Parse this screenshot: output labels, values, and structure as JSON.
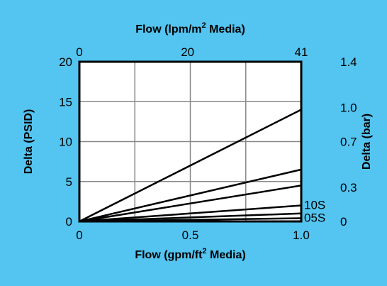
{
  "chart_data": {
    "type": "line",
    "background_color": "#54C4F0",
    "plot_background": "#FFFFFF",
    "grid": true,
    "axes": {
      "x_bottom": {
        "label_main": "Flow (gpm/ft",
        "label_sup": "2",
        "label_rest": " Media)",
        "range": [
          0,
          1.0
        ],
        "ticks": [
          0,
          0.5,
          1.0
        ],
        "tick_labels": [
          "0",
          "0.5",
          "1.0"
        ]
      },
      "x_top": {
        "label_main": "Flow (lpm/m",
        "label_sup": "2",
        "label_rest": " Media)",
        "range": [
          0,
          41
        ],
        "ticks": [
          0,
          20,
          41
        ],
        "tick_labels": [
          "0",
          "20",
          "41"
        ]
      },
      "y_left": {
        "label": "Delta (PSID)",
        "range": [
          0,
          20
        ],
        "ticks": [
          0,
          5,
          10,
          15,
          20
        ],
        "tick_labels": [
          "0",
          "5",
          "10",
          "15",
          "20"
        ]
      },
      "y_right": {
        "label": "Delta (bar)",
        "range": [
          0,
          1.4
        ],
        "ticks": [
          0,
          0.3,
          0.7,
          1.0,
          1.4
        ],
        "tick_labels": [
          "0",
          "0.3",
          "0.7",
          "1.0",
          "1.4"
        ]
      }
    },
    "series": [
      {
        "x": [
          0,
          1.0
        ],
        "y": [
          0,
          14.0
        ]
      },
      {
        "x": [
          0,
          1.0
        ],
        "y": [
          0,
          6.5
        ]
      },
      {
        "x": [
          0,
          1.0
        ],
        "y": [
          0,
          4.5
        ]
      },
      {
        "name": "10S",
        "x": [
          0,
          1.0
        ],
        "y": [
          0,
          2.0
        ]
      },
      {
        "x": [
          0,
          1.0
        ],
        "y": [
          0,
          1.0
        ]
      },
      {
        "name": "05S",
        "x": [
          0,
          1.0
        ],
        "y": [
          0,
          0.4
        ]
      }
    ]
  }
}
